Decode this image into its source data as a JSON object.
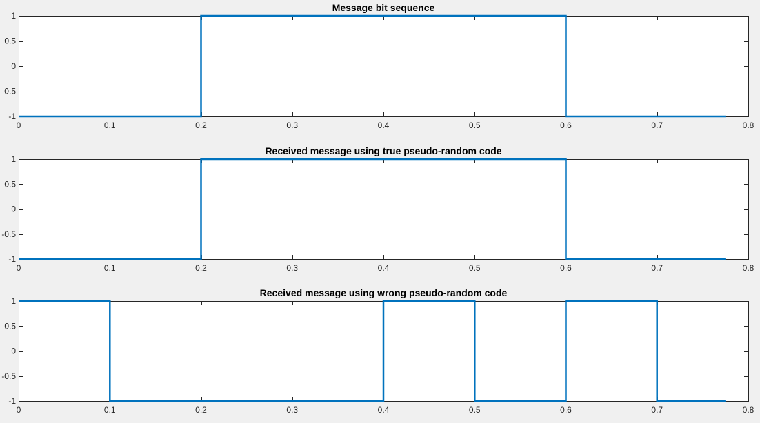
{
  "chart_data": [
    {
      "type": "line",
      "title": "Message bit sequence",
      "xlim": [
        0,
        0.8
      ],
      "ylim": [
        -1,
        1
      ],
      "xticks": [
        0,
        0.1,
        0.2,
        0.3,
        0.4,
        0.5,
        0.6,
        0.7,
        0.8
      ],
      "xtick_labels": [
        "0",
        "0.1",
        "0.2",
        "0.3",
        "0.4",
        "0.5",
        "0.6",
        "0.7",
        "0.8"
      ],
      "yticks": [
        -1,
        -0.5,
        0,
        0.5,
        1
      ],
      "ytick_labels": [
        "-1",
        "-0.5",
        "0",
        "0.5",
        "1"
      ],
      "grid": false,
      "series": [
        {
          "color": "#0072BD",
          "x": [
            0,
            0.2,
            0.2,
            0.6,
            0.6,
            0.775
          ],
          "y": [
            -1,
            -1,
            1,
            1,
            -1,
            -1
          ]
        }
      ]
    },
    {
      "type": "line",
      "title": "Received message using true pseudo-random code",
      "xlim": [
        0,
        0.8
      ],
      "ylim": [
        -1,
        1
      ],
      "xticks": [
        0,
        0.1,
        0.2,
        0.3,
        0.4,
        0.5,
        0.6,
        0.7,
        0.8
      ],
      "xtick_labels": [
        "0",
        "0.1",
        "0.2",
        "0.3",
        "0.4",
        "0.5",
        "0.6",
        "0.7",
        "0.8"
      ],
      "yticks": [
        -1,
        -0.5,
        0,
        0.5,
        1
      ],
      "ytick_labels": [
        "-1",
        "-0.5",
        "0",
        "0.5",
        "1"
      ],
      "grid": false,
      "series": [
        {
          "color": "#0072BD",
          "x": [
            0,
            0.2,
            0.2,
            0.6,
            0.6,
            0.775
          ],
          "y": [
            -1,
            -1,
            1,
            1,
            -1,
            -1
          ]
        }
      ]
    },
    {
      "type": "line",
      "title": "Received message using wrong pseudo-random code",
      "xlim": [
        0,
        0.8
      ],
      "ylim": [
        -1,
        1
      ],
      "xticks": [
        0,
        0.1,
        0.2,
        0.3,
        0.4,
        0.5,
        0.6,
        0.7,
        0.8
      ],
      "xtick_labels": [
        "0",
        "0.1",
        "0.2",
        "0.3",
        "0.4",
        "0.5",
        "0.6",
        "0.7",
        "0.8"
      ],
      "yticks": [
        -1,
        -0.5,
        0,
        0.5,
        1
      ],
      "ytick_labels": [
        "-1",
        "-0.5",
        "0",
        "0.5",
        "1"
      ],
      "grid": false,
      "series": [
        {
          "color": "#0072BD",
          "x": [
            0,
            0.1,
            0.1,
            0.4,
            0.4,
            0.5,
            0.5,
            0.6,
            0.6,
            0.7,
            0.7,
            0.775
          ],
          "y": [
            1,
            1,
            -1,
            -1,
            1,
            1,
            -1,
            -1,
            1,
            1,
            -1,
            -1
          ]
        }
      ]
    }
  ]
}
